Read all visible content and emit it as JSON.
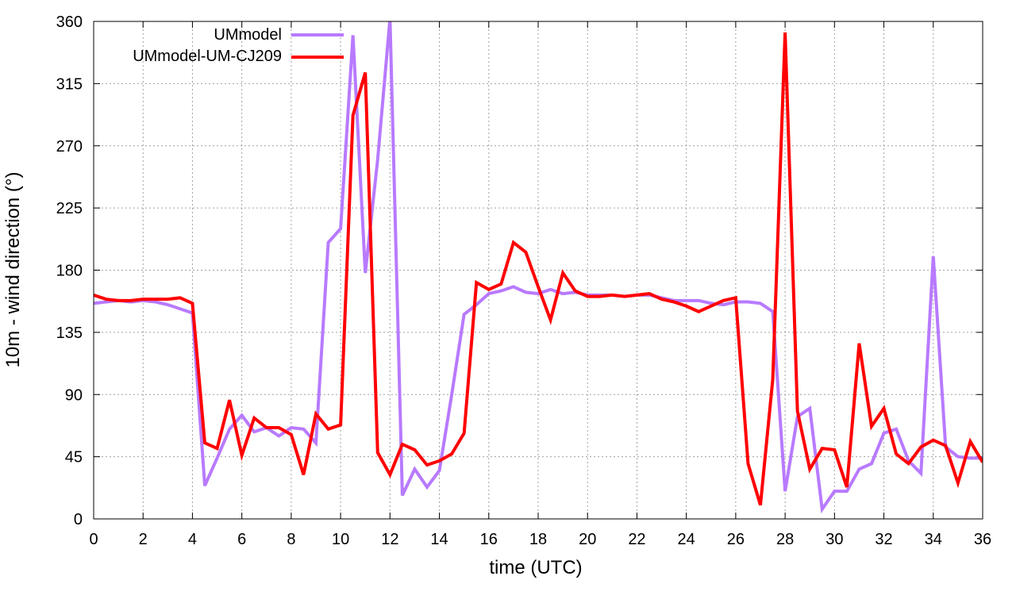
{
  "chart_data": {
    "type": "line",
    "xlabel": "time (UTC)",
    "ylabel": "10m - wind direction (°)",
    "xlim": [
      0,
      36
    ],
    "ylim": [
      0,
      360
    ],
    "xticks": [
      0,
      2,
      4,
      6,
      8,
      10,
      12,
      14,
      16,
      18,
      20,
      22,
      24,
      26,
      28,
      30,
      32,
      34,
      36
    ],
    "yticks": [
      0,
      45,
      90,
      135,
      180,
      225,
      270,
      315,
      360
    ],
    "grid": true,
    "legend": "top-left",
    "series": [
      {
        "name": "UMmodel",
        "color": "#b87aff",
        "x": [
          0,
          0.5,
          1,
          1.5,
          2,
          2.5,
          3,
          3.5,
          4,
          4.5,
          5,
          5.5,
          6,
          6.5,
          7,
          7.5,
          8,
          8.5,
          9,
          9.5,
          10,
          10.5,
          11,
          11.5,
          12,
          12.5,
          13,
          13.5,
          14,
          14.5,
          15,
          15.5,
          16,
          16.5,
          17,
          17.5,
          18,
          18.5,
          19,
          19.5,
          20,
          20.5,
          21,
          21.5,
          22,
          22.5,
          23,
          23.5,
          24,
          24.5,
          25,
          25.5,
          26,
          26.5,
          27,
          27.5,
          28,
          28.5,
          29,
          29.5,
          30,
          30.5,
          31,
          31.5,
          32,
          32.5,
          33,
          33.5,
          34,
          34.5,
          35,
          35.5,
          36
        ],
        "values": [
          156,
          157,
          158,
          157,
          158,
          157,
          155,
          152,
          149,
          24,
          44,
          65,
          75,
          63,
          66,
          60,
          66,
          65,
          55,
          200,
          210,
          350,
          178,
          260,
          362,
          17,
          36,
          23,
          35,
          90,
          148,
          155,
          163,
          165,
          168,
          164,
          163,
          166,
          163,
          164,
          162,
          162,
          162,
          161,
          162,
          162,
          160,
          158,
          158,
          158,
          156,
          155,
          157,
          157,
          156,
          150,
          20,
          74,
          80,
          7,
          20,
          20,
          36,
          40,
          62,
          65,
          42,
          33,
          190,
          52,
          45,
          44,
          44
        ]
      },
      {
        "name": "UMmodel-UM-CJ209",
        "color": "#ff0000",
        "x": [
          0,
          0.5,
          1,
          1.5,
          2,
          2.5,
          3,
          3.5,
          4,
          4.5,
          5,
          5.5,
          6,
          6.5,
          7,
          7.5,
          8,
          8.5,
          9,
          9.5,
          10,
          10.5,
          11,
          11.5,
          12,
          12.5,
          13,
          13.5,
          14,
          14.5,
          15,
          15.5,
          16,
          16.5,
          17,
          17.5,
          18,
          18.5,
          19,
          19.5,
          20,
          20.5,
          21,
          21.5,
          22,
          22.5,
          23,
          23.5,
          24,
          24.5,
          25,
          25.5,
          26,
          26.5,
          27,
          27.5,
          28,
          28.5,
          29,
          29.5,
          30,
          30.5,
          31,
          31.5,
          32,
          32.5,
          33,
          33.5,
          34,
          34.5,
          35,
          35.5,
          36
        ],
        "values": [
          162,
          159,
          158,
          158,
          159,
          159,
          159,
          160,
          156,
          55,
          51,
          86,
          46,
          73,
          66,
          66,
          61,
          32,
          76,
          65,
          68,
          292,
          323,
          48,
          32,
          54,
          50,
          39,
          42,
          47,
          62,
          171,
          166,
          170,
          200,
          193,
          168,
          144,
          178,
          165,
          161,
          161,
          162,
          161,
          162,
          163,
          159,
          157,
          154,
          150,
          154,
          158,
          160,
          40,
          10,
          101,
          352,
          78,
          36,
          51,
          50,
          23,
          127,
          67,
          80,
          47,
          40,
          52,
          57,
          53,
          26,
          56,
          41
        ]
      }
    ]
  }
}
